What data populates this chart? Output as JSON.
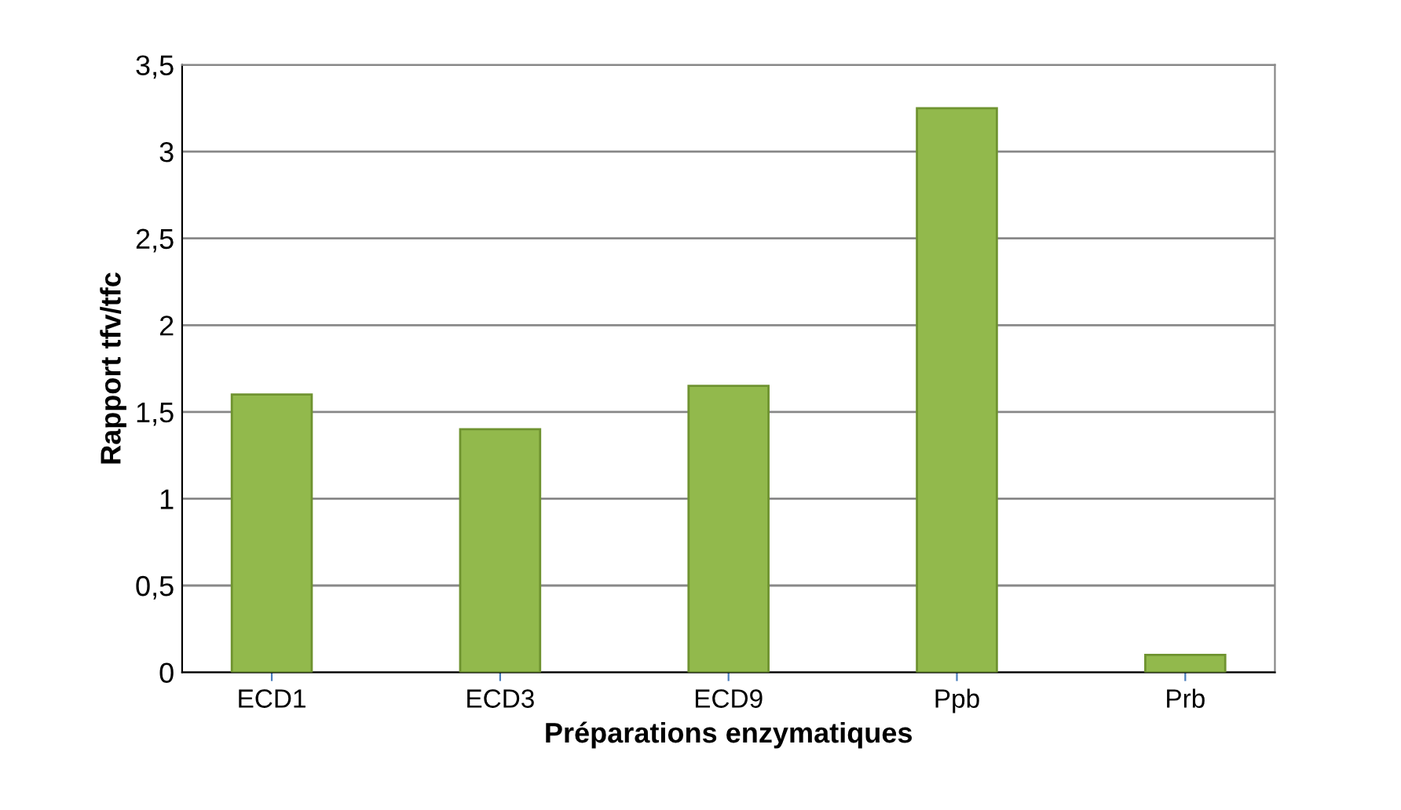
{
  "chart_data": {
    "type": "bar",
    "xlabel": "Préparations enzymatiques",
    "ylabel": "Rapport tfv/tfc",
    "categories": [
      "ECD1",
      "ECD3",
      "ECD9",
      "Ppb",
      "Prb"
    ],
    "values": [
      1.6,
      1.4,
      1.65,
      3.25,
      0.1
    ],
    "color": "#92b94c",
    "ylim": [
      0,
      3.5
    ],
    "yticks": [
      0,
      {
        "value": 0.5,
        "label": "0,5"
      },
      1,
      {
        "value": 1.5,
        "label": "1,5"
      },
      2,
      {
        "value": 2.5,
        "label": "2,5"
      },
      3,
      {
        "value": 3.5,
        "label": "3,5"
      }
    ],
    "grid": "y"
  }
}
